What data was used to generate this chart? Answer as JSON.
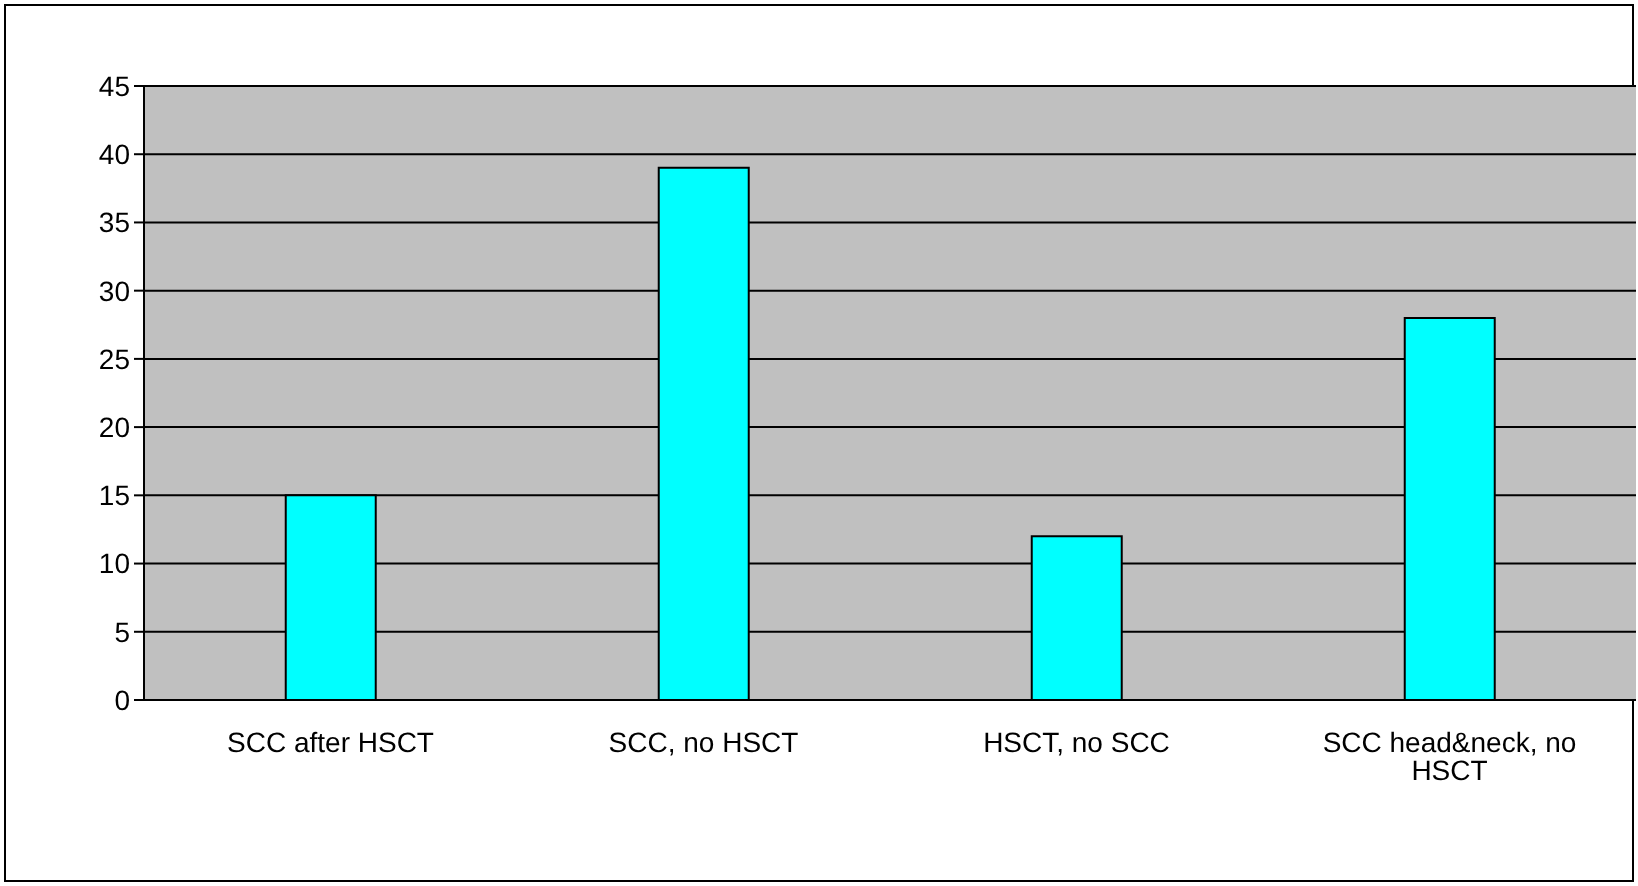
{
  "chart_data": {
    "type": "bar",
    "categories": [
      "SCC after HSCT",
      "SCC, no HSCT",
      "HSCT, no SCC",
      "SCC head&neck, no HSCT"
    ],
    "values": [
      15,
      39,
      12,
      28
    ],
    "color": "#00ffff",
    "ylim": [
      0,
      45
    ],
    "yticks": [
      0,
      5,
      10,
      15,
      20,
      25,
      30,
      35,
      40,
      45
    ],
    "grid": "y",
    "legend": false
  }
}
